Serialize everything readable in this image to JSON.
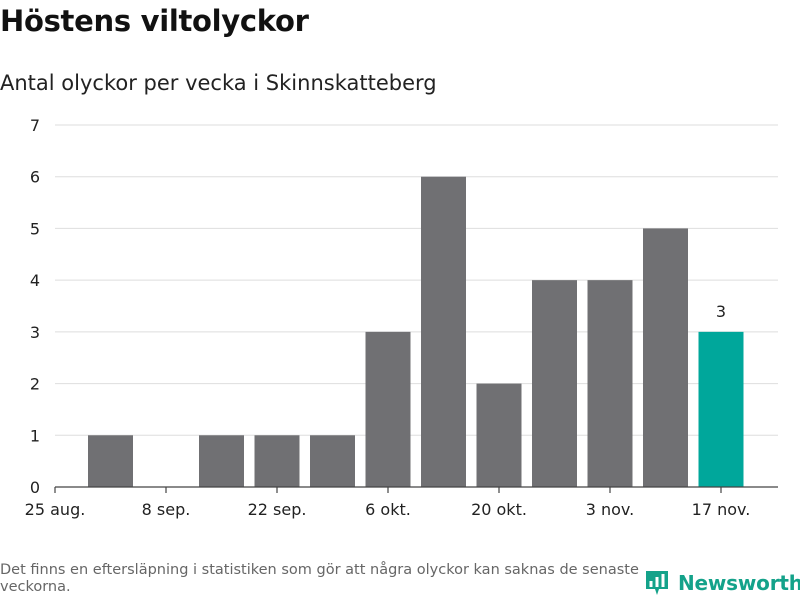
{
  "colors": {
    "bar": "#707073",
    "highlight": "#00a79b",
    "grid": "#dedede",
    "brand": "#14a28a"
  },
  "chart_data": {
    "type": "bar",
    "title": "Höstens viltolyckor",
    "subtitle": "Antal olyckor per vecka i Skinnskatteberg",
    "weeks": 13,
    "values": [
      0,
      1,
      0,
      1,
      1,
      1,
      3,
      6,
      2,
      4,
      4,
      5,
      3
    ],
    "highlight_index": 12,
    "highlight_label": "3",
    "x_tick_labels": [
      {
        "label": "25 aug.",
        "week": 0
      },
      {
        "label": "8 sep.",
        "week": 2
      },
      {
        "label": "22 sep.",
        "week": 4
      },
      {
        "label": "6 okt.",
        "week": 6
      },
      {
        "label": "20 okt.",
        "week": 8
      },
      {
        "label": "3 nov.",
        "week": 10
      },
      {
        "label": "17 nov.",
        "week": 12
      }
    ],
    "y_ticks": [
      0,
      1,
      2,
      3,
      4,
      5,
      6,
      7
    ],
    "ylim": [
      0,
      7
    ],
    "grid": true,
    "xlabel": "",
    "ylabel": ""
  },
  "footnote": "Det finns en eftersläpning i statistiken som gör att några olyckor kan saknas de senaste veckorna.",
  "brand": {
    "name": "Newsworthy",
    "icon": "bar-chart-badge-icon"
  }
}
